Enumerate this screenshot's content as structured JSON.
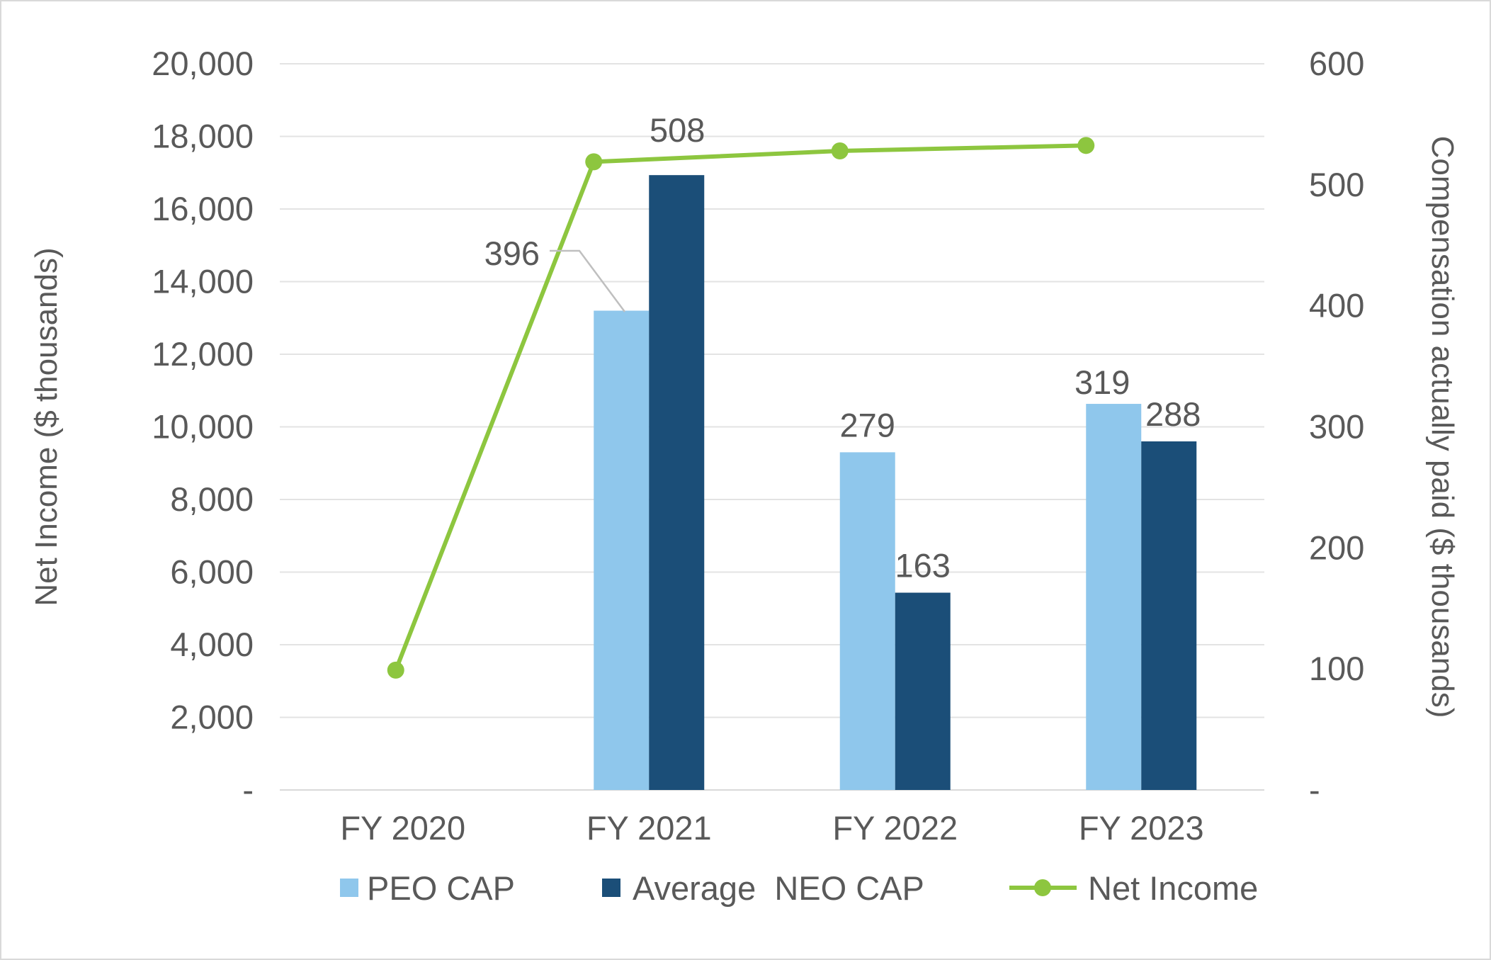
{
  "chart_data": {
    "type": "bar+line",
    "categories": [
      "FY 2020",
      "FY 2021",
      "FY 2022",
      "FY 2023"
    ],
    "series": [
      {
        "name": "PEO CAP",
        "kind": "bar",
        "axis": "right",
        "color": "#8fc7ec",
        "values": [
          null,
          396,
          279,
          319
        ],
        "labels": [
          "",
          "396",
          "279",
          "319"
        ]
      },
      {
        "name": "Average  NEO CAP",
        "kind": "bar",
        "axis": "right",
        "color": "#1b4e78",
        "values": [
          null,
          508,
          163,
          288
        ],
        "labels": [
          "",
          "508",
          "163",
          "288"
        ]
      },
      {
        "name": "Net Income",
        "kind": "line",
        "axis": "left",
        "color": "#8dc63f",
        "values": [
          3300,
          17300,
          17600,
          17750
        ]
      }
    ],
    "y_left": {
      "label": "Net Income ($ thousands)",
      "min": 0,
      "max": 20000,
      "step": 2000,
      "ticks": [
        "-",
        "2,000",
        "4,000",
        "6,000",
        "8,000",
        "10,000",
        "12,000",
        "14,000",
        "16,000",
        "18,000",
        "20,000"
      ]
    },
    "y_right": {
      "label": "Compensation actually paid ($ thousands)",
      "min": 0,
      "max": 600,
      "step": 100,
      "ticks": [
        "-",
        "100",
        "200",
        "300",
        "400",
        "500",
        "600"
      ]
    },
    "grid": true,
    "legend": {
      "position": "bottom",
      "entries": [
        "PEO CAP",
        "Average  NEO CAP",
        "Net Income"
      ]
    }
  }
}
